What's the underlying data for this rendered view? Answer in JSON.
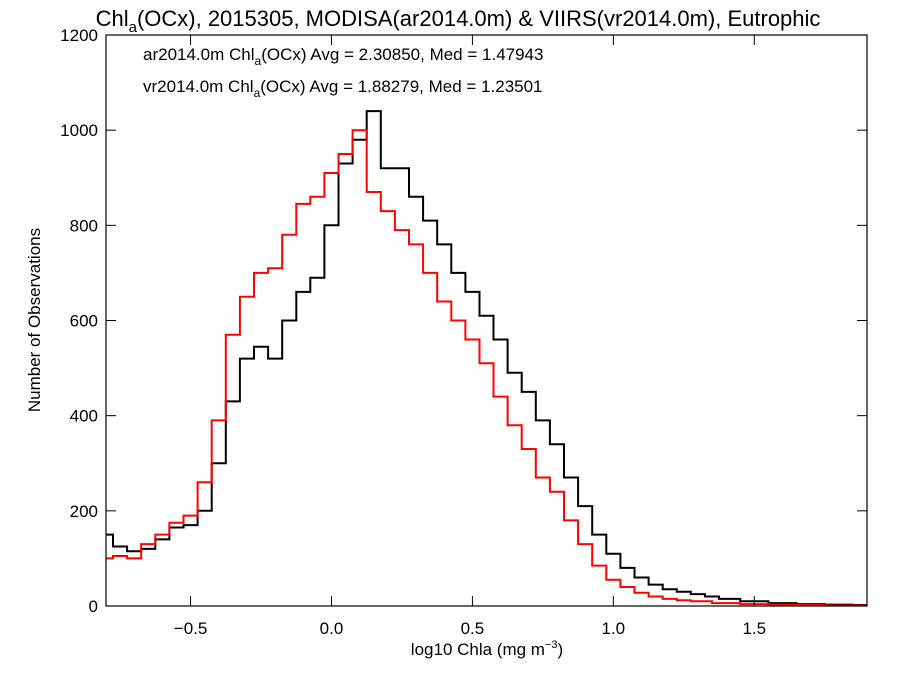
{
  "chart_data": {
    "type": "line",
    "title": {
      "pre": "Chl",
      "sub": "a",
      "post": "(OCx), 2015305, MODISA(ar2014.0m) & VIIRS(vr2014.0m), Eutrophic"
    },
    "xlabel": {
      "pre": "log10 Chla (mg m",
      "sup": "−3",
      "post": ")"
    },
    "ylabel": "Number of Observations",
    "xlim": [
      -0.8,
      1.9
    ],
    "ylim": [
      0,
      1200
    ],
    "x_ticks": [
      {
        "v": -0.5,
        "label": "−0.5"
      },
      {
        "v": 0.0,
        "label": "0.0"
      },
      {
        "v": 0.5,
        "label": "0.5"
      },
      {
        "v": 1.0,
        "label": "1.0"
      },
      {
        "v": 1.5,
        "label": "1.5"
      }
    ],
    "y_ticks": [
      {
        "v": 0,
        "label": "0"
      },
      {
        "v": 200,
        "label": "200"
      },
      {
        "v": 400,
        "label": "400"
      },
      {
        "v": 600,
        "label": "600"
      },
      {
        "v": 800,
        "label": "800"
      },
      {
        "v": 1000,
        "label": "1000"
      },
      {
        "v": 1200,
        "label": "1200"
      }
    ],
    "grid": false,
    "legend_position": "top-left",
    "annotations": [
      {
        "pre": "ar2014.0m Chl",
        "sub": "a",
        "post": "(OCx) Avg = 2.30850, Med = 1.47943",
        "color": "#000000"
      },
      {
        "pre": "vr2014.0m Chl",
        "sub": "a",
        "post": "(OCx) Avg = 1.88279, Med = 1.23501",
        "color": "#ff0000"
      }
    ],
    "series": [
      {
        "color": "#000000",
        "points": [
          [
            -0.8,
            150
          ],
          [
            -0.75,
            125
          ],
          [
            -0.7,
            115
          ],
          [
            -0.65,
            120
          ],
          [
            -0.6,
            140
          ],
          [
            -0.55,
            165
          ],
          [
            -0.5,
            170
          ],
          [
            -0.45,
            200
          ],
          [
            -0.4,
            300
          ],
          [
            -0.35,
            430
          ],
          [
            -0.3,
            520
          ],
          [
            -0.25,
            545
          ],
          [
            -0.2,
            520
          ],
          [
            -0.15,
            600
          ],
          [
            -0.1,
            660
          ],
          [
            -0.05,
            690
          ],
          [
            0.0,
            800
          ],
          [
            0.05,
            930
          ],
          [
            0.1,
            980
          ],
          [
            0.15,
            1040
          ],
          [
            0.2,
            920
          ],
          [
            0.25,
            920
          ],
          [
            0.3,
            860
          ],
          [
            0.35,
            810
          ],
          [
            0.4,
            760
          ],
          [
            0.45,
            700
          ],
          [
            0.5,
            660
          ],
          [
            0.55,
            610
          ],
          [
            0.6,
            560
          ],
          [
            0.65,
            490
          ],
          [
            0.7,
            450
          ],
          [
            0.75,
            390
          ],
          [
            0.8,
            340
          ],
          [
            0.85,
            270
          ],
          [
            0.9,
            210
          ],
          [
            0.95,
            150
          ],
          [
            1.0,
            110
          ],
          [
            1.05,
            80
          ],
          [
            1.1,
            60
          ],
          [
            1.15,
            45
          ],
          [
            1.2,
            35
          ],
          [
            1.25,
            30
          ],
          [
            1.3,
            25
          ],
          [
            1.35,
            20
          ],
          [
            1.4,
            15
          ],
          [
            1.5,
            10
          ],
          [
            1.6,
            6
          ],
          [
            1.7,
            4
          ],
          [
            1.8,
            3
          ],
          [
            1.9,
            2
          ]
        ]
      },
      {
        "color": "#ff0000",
        "points": [
          [
            -0.8,
            100
          ],
          [
            -0.75,
            105
          ],
          [
            -0.7,
            100
          ],
          [
            -0.65,
            130
          ],
          [
            -0.6,
            150
          ],
          [
            -0.55,
            175
          ],
          [
            -0.5,
            190
          ],
          [
            -0.45,
            260
          ],
          [
            -0.4,
            390
          ],
          [
            -0.35,
            570
          ],
          [
            -0.3,
            650
          ],
          [
            -0.25,
            700
          ],
          [
            -0.2,
            710
          ],
          [
            -0.15,
            780
          ],
          [
            -0.1,
            845
          ],
          [
            -0.05,
            860
          ],
          [
            0.0,
            910
          ],
          [
            0.05,
            950
          ],
          [
            0.1,
            1000
          ],
          [
            0.15,
            870
          ],
          [
            0.2,
            830
          ],
          [
            0.25,
            790
          ],
          [
            0.3,
            760
          ],
          [
            0.35,
            700
          ],
          [
            0.4,
            640
          ],
          [
            0.45,
            600
          ],
          [
            0.5,
            560
          ],
          [
            0.55,
            510
          ],
          [
            0.6,
            440
          ],
          [
            0.65,
            380
          ],
          [
            0.7,
            330
          ],
          [
            0.75,
            270
          ],
          [
            0.8,
            240
          ],
          [
            0.85,
            180
          ],
          [
            0.9,
            130
          ],
          [
            0.95,
            85
          ],
          [
            1.0,
            55
          ],
          [
            1.05,
            40
          ],
          [
            1.1,
            28
          ],
          [
            1.15,
            20
          ],
          [
            1.2,
            15
          ],
          [
            1.25,
            12
          ],
          [
            1.3,
            10
          ],
          [
            1.4,
            6
          ],
          [
            1.5,
            4
          ],
          [
            1.6,
            3
          ],
          [
            1.7,
            2
          ],
          [
            1.8,
            1
          ],
          [
            1.9,
            1
          ]
        ]
      }
    ]
  }
}
